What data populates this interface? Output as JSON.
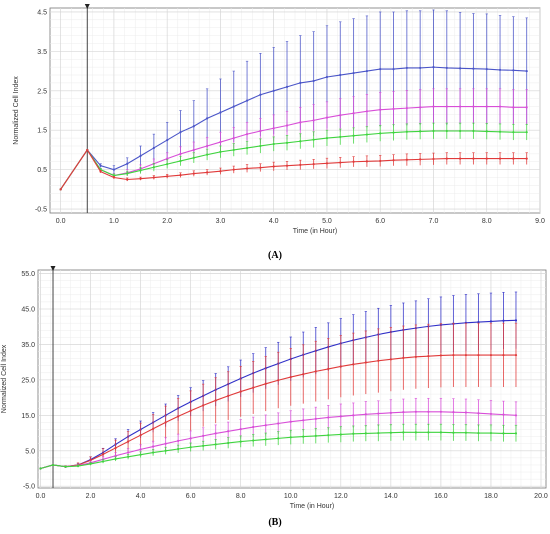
{
  "chart_data": [
    {
      "type": "line",
      "panel_label": "(A)",
      "xlabel": "Time (in Hour)",
      "ylabel": "Normalized Cell Index",
      "xlim": [
        -0.2,
        9.0
      ],
      "ylim": [
        -0.6,
        4.6
      ],
      "x_ticks": [
        0.0,
        1.0,
        2.0,
        3.0,
        4.0,
        5.0,
        6.0,
        7.0,
        8.0,
        9.0
      ],
      "x_tick_labels": [
        "0.0",
        "1.0",
        "2.0",
        "3.0",
        "4.0",
        "5.0",
        "6.0",
        "7.0",
        "8.0",
        "9.0"
      ],
      "y_ticks": [
        -0.5,
        0.5,
        1.5,
        2.5,
        3.5,
        4.5
      ],
      "y_tick_labels": [
        "-0.5",
        "0.5",
        "1.5",
        "2.5",
        "3.5",
        "4.5"
      ],
      "grid": true,
      "marker_x": 0.5,
      "x": [
        0.0,
        0.5,
        0.75,
        1.0,
        1.25,
        1.5,
        1.75,
        2.0,
        2.25,
        2.5,
        2.75,
        3.0,
        3.25,
        3.5,
        3.75,
        4.0,
        4.25,
        4.5,
        4.75,
        5.0,
        5.25,
        5.5,
        5.75,
        6.0,
        6.25,
        6.5,
        6.75,
        7.0,
        7.25,
        7.5,
        7.75,
        8.0,
        8.25,
        8.5,
        8.75
      ],
      "series": [
        {
          "color": "#4a55c8",
          "values": [
            0.0,
            1.0,
            0.6,
            0.5,
            0.65,
            0.85,
            1.05,
            1.25,
            1.45,
            1.6,
            1.8,
            1.95,
            2.1,
            2.25,
            2.4,
            2.5,
            2.6,
            2.7,
            2.75,
            2.85,
            2.9,
            2.95,
            3.0,
            3.05,
            3.05,
            3.08,
            3.08,
            3.1,
            3.08,
            3.07,
            3.06,
            3.05,
            3.03,
            3.02,
            3.0
          ],
          "errors": [
            0,
            0,
            0.05,
            0.1,
            0.15,
            0.25,
            0.35,
            0.45,
            0.55,
            0.65,
            0.75,
            0.85,
            0.9,
            1.0,
            1.05,
            1.1,
            1.15,
            1.2,
            1.25,
            1.3,
            1.35,
            1.38,
            1.4,
            1.45,
            1.45,
            1.45,
            1.45,
            1.45,
            1.45,
            1.42,
            1.4,
            1.4,
            1.38,
            1.36,
            1.35
          ]
        },
        {
          "color": "#d84ed8",
          "values": [
            0.0,
            1.0,
            0.5,
            0.35,
            0.42,
            0.52,
            0.65,
            0.78,
            0.9,
            1.0,
            1.1,
            1.2,
            1.3,
            1.4,
            1.48,
            1.55,
            1.62,
            1.7,
            1.75,
            1.82,
            1.88,
            1.93,
            1.98,
            2.02,
            2.04,
            2.06,
            2.08,
            2.1,
            2.1,
            2.1,
            2.1,
            2.1,
            2.1,
            2.08,
            2.08
          ],
          "errors": [
            0,
            0,
            0.03,
            0.05,
            0.08,
            0.1,
            0.12,
            0.15,
            0.18,
            0.2,
            0.22,
            0.25,
            0.27,
            0.3,
            0.32,
            0.34,
            0.36,
            0.38,
            0.4,
            0.4,
            0.42,
            0.42,
            0.43,
            0.44,
            0.44,
            0.45,
            0.45,
            0.45,
            0.45,
            0.45,
            0.45,
            0.45,
            0.45,
            0.45,
            0.45
          ]
        },
        {
          "color": "#3fd43f",
          "values": [
            0.0,
            1.0,
            0.5,
            0.35,
            0.4,
            0.48,
            0.56,
            0.64,
            0.72,
            0.8,
            0.88,
            0.95,
            1.0,
            1.05,
            1.1,
            1.15,
            1.18,
            1.22,
            1.26,
            1.3,
            1.33,
            1.36,
            1.39,
            1.42,
            1.44,
            1.46,
            1.47,
            1.48,
            1.48,
            1.48,
            1.48,
            1.47,
            1.46,
            1.45,
            1.45
          ],
          "errors": [
            0,
            0,
            0.03,
            0.04,
            0.06,
            0.08,
            0.1,
            0.11,
            0.12,
            0.13,
            0.14,
            0.15,
            0.16,
            0.17,
            0.18,
            0.18,
            0.19,
            0.19,
            0.2,
            0.2,
            0.2,
            0.2,
            0.2,
            0.2,
            0.2,
            0.2,
            0.2,
            0.2,
            0.2,
            0.2,
            0.2,
            0.2,
            0.2,
            0.2,
            0.2
          ]
        },
        {
          "color": "#e03a3a",
          "values": [
            0.0,
            1.0,
            0.45,
            0.3,
            0.25,
            0.27,
            0.3,
            0.33,
            0.36,
            0.4,
            0.43,
            0.46,
            0.5,
            0.53,
            0.55,
            0.58,
            0.6,
            0.62,
            0.64,
            0.66,
            0.68,
            0.7,
            0.71,
            0.72,
            0.74,
            0.75,
            0.76,
            0.77,
            0.78,
            0.78,
            0.78,
            0.78,
            0.78,
            0.78,
            0.78
          ],
          "errors": [
            0,
            0,
            0.03,
            0.03,
            0.04,
            0.04,
            0.05,
            0.05,
            0.06,
            0.07,
            0.07,
            0.08,
            0.09,
            0.1,
            0.1,
            0.11,
            0.11,
            0.12,
            0.12,
            0.13,
            0.13,
            0.13,
            0.14,
            0.14,
            0.14,
            0.15,
            0.15,
            0.15,
            0.15,
            0.15,
            0.15,
            0.15,
            0.15,
            0.15,
            0.15
          ]
        }
      ]
    },
    {
      "type": "line",
      "panel_label": "(B)",
      "xlabel": "Time (in Hour)",
      "ylabel": "Normalized Cell Index",
      "xlim": [
        -0.1,
        20.2
      ],
      "ylim": [
        -5.5,
        56.0
      ],
      "x_ticks": [
        0.0,
        2.0,
        4.0,
        6.0,
        8.0,
        10.0,
        12.0,
        14.0,
        16.0,
        18.0,
        20.0
      ],
      "x_tick_labels": [
        "0.0",
        "2.0",
        "4.0",
        "6.0",
        "8.0",
        "10.0",
        "12.0",
        "14.0",
        "16.0",
        "18.0",
        "20.0"
      ],
      "y_ticks": [
        -5.0,
        5.0,
        15.0,
        25.0,
        35.0,
        45.0,
        55.0
      ],
      "y_tick_labels": [
        "-5.0",
        "5.0",
        "15.0",
        "25.0",
        "35.0",
        "45.0",
        "55.0"
      ],
      "grid": true,
      "marker_x": 0.5,
      "x": [
        0.0,
        0.5,
        1.0,
        1.5,
        2.0,
        2.5,
        3.0,
        3.5,
        4.0,
        4.5,
        5.0,
        5.5,
        6.0,
        6.5,
        7.0,
        7.5,
        8.0,
        8.5,
        9.0,
        9.5,
        10.0,
        10.5,
        11.0,
        11.5,
        12.0,
        12.5,
        13.0,
        13.5,
        14.0,
        14.5,
        15.0,
        15.5,
        16.0,
        16.5,
        17.0,
        17.5,
        18.0,
        18.5,
        19.0
      ],
      "series": [
        {
          "color": "#3030c8",
          "values": [
            0.0,
            1.0,
            0.5,
            1.0,
            2.5,
            4.5,
            6.8,
            9.0,
            11.0,
            13.0,
            15.0,
            17.0,
            18.8,
            20.5,
            22.2,
            23.8,
            25.4,
            26.9,
            28.3,
            29.6,
            30.9,
            32.1,
            33.2,
            34.3,
            35.3,
            36.2,
            37.0,
            37.8,
            38.5,
            39.1,
            39.6,
            40.1,
            40.5,
            40.8,
            41.1,
            41.3,
            41.5,
            41.7,
            41.8
          ],
          "errors": [
            0,
            0,
            0.2,
            0.4,
            0.8,
            1.2,
            1.6,
            2.0,
            2.4,
            2.8,
            3.2,
            3.6,
            4.0,
            4.3,
            4.6,
            4.9,
            5.2,
            5.5,
            5.8,
            6.0,
            6.2,
            6.4,
            6.6,
            6.8,
            7.0,
            7.2,
            7.3,
            7.4,
            7.5,
            7.6,
            7.7,
            7.8,
            7.9,
            8.0,
            8.0,
            8.0,
            8.0,
            8.0,
            8.0
          ]
        },
        {
          "color": "#e03a3a",
          "values": [
            0.0,
            1.0,
            0.5,
            1.0,
            2.3,
            4.0,
            5.8,
            7.6,
            9.4,
            11.2,
            13.0,
            14.7,
            16.3,
            17.8,
            19.2,
            20.5,
            21.7,
            22.8,
            23.9,
            24.9,
            25.8,
            26.6,
            27.4,
            28.1,
            28.8,
            29.4,
            29.9,
            30.4,
            30.8,
            31.2,
            31.5,
            31.7,
            31.9,
            32.0,
            32.0,
            32.0,
            32.0,
            32.0,
            32.0
          ],
          "errors": [
            0,
            0,
            0.3,
            0.6,
            1.0,
            1.6,
            2.2,
            2.8,
            3.4,
            4.0,
            4.6,
            5.1,
            5.6,
            6.0,
            6.4,
            6.8,
            7.1,
            7.4,
            7.7,
            7.9,
            8.1,
            8.3,
            8.5,
            8.6,
            8.7,
            8.8,
            8.9,
            9.0,
            9.0,
            9.0,
            9.0,
            9.0,
            9.0,
            9.0,
            9.0,
            9.0,
            9.0,
            9.0,
            9.0
          ]
        },
        {
          "color": "#d84ed8",
          "values": [
            0.0,
            1.0,
            0.5,
            0.8,
            1.6,
            2.6,
            3.6,
            4.5,
            5.4,
            6.2,
            7.0,
            7.8,
            8.5,
            9.2,
            9.9,
            10.5,
            11.1,
            11.7,
            12.2,
            12.7,
            13.2,
            13.6,
            14.0,
            14.4,
            14.7,
            15.0,
            15.3,
            15.5,
            15.7,
            15.9,
            16.0,
            16.0,
            16.0,
            15.9,
            15.8,
            15.6,
            15.4,
            15.2,
            15.0
          ],
          "errors": [
            0,
            0,
            0.2,
            0.3,
            0.5,
            0.7,
            0.9,
            1.1,
            1.3,
            1.5,
            1.7,
            1.9,
            2.1,
            2.3,
            2.4,
            2.6,
            2.7,
            2.8,
            2.9,
            3.0,
            3.1,
            3.2,
            3.3,
            3.4,
            3.5,
            3.5,
            3.6,
            3.6,
            3.7,
            3.7,
            3.8,
            3.8,
            3.8,
            3.8,
            3.8,
            3.8,
            3.8,
            3.8,
            3.8
          ]
        },
        {
          "color": "#3fd43f",
          "values": [
            0.0,
            1.0,
            0.5,
            0.7,
            1.3,
            2.0,
            2.7,
            3.3,
            3.9,
            4.5,
            5.0,
            5.5,
            6.0,
            6.4,
            6.8,
            7.2,
            7.6,
            7.9,
            8.2,
            8.5,
            8.8,
            9.0,
            9.2,
            9.4,
            9.6,
            9.8,
            9.9,
            10.0,
            10.1,
            10.2,
            10.2,
            10.2,
            10.2,
            10.1,
            10.1,
            10.0,
            10.0,
            9.9,
            9.9
          ],
          "errors": [
            0,
            0,
            0.2,
            0.3,
            0.4,
            0.5,
            0.6,
            0.7,
            0.8,
            0.9,
            1.0,
            1.1,
            1.2,
            1.3,
            1.4,
            1.5,
            1.6,
            1.7,
            1.8,
            1.9,
            2.0,
            2.0,
            2.1,
            2.1,
            2.2,
            2.2,
            2.2,
            2.3,
            2.3,
            2.3,
            2.3,
            2.3,
            2.3,
            2.3,
            2.3,
            2.3,
            2.3,
            2.3,
            2.3
          ]
        }
      ]
    }
  ]
}
